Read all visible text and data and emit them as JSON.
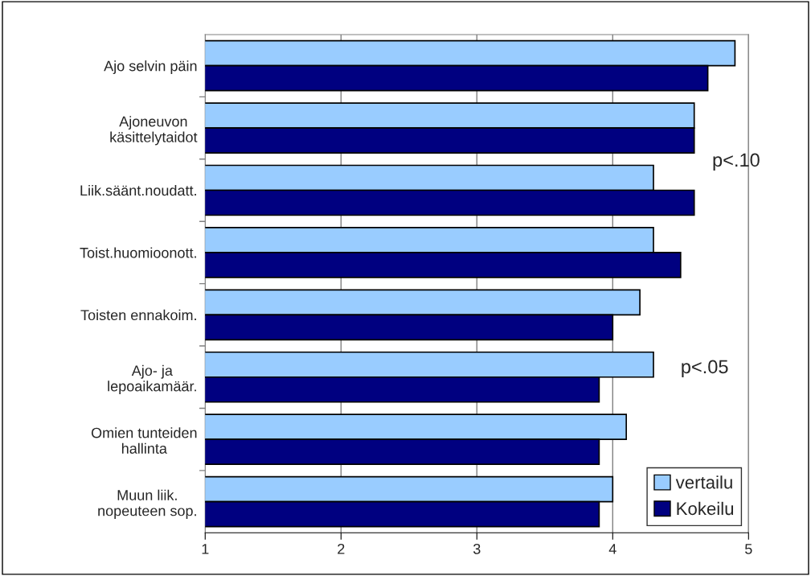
{
  "chart_data": {
    "type": "bar",
    "orientation": "horizontal",
    "categories": [
      "Ajo selvin päin",
      "Ajoneuvon\nkäsittelytaidot",
      "Liik.säänt.noudatt.",
      "Toist.huomioonott.",
      "Toisten ennakoim.",
      "Ajo- ja\nlepoaikamäär.",
      "Omien tunteiden\nhallinta",
      "Muun liik.\nnopeuteen sop."
    ],
    "series": [
      {
        "name": "vertailu",
        "color": "#99ccff",
        "values": [
          4.9,
          4.6,
          4.3,
          4.3,
          4.2,
          4.3,
          4.1,
          4.0
        ]
      },
      {
        "name": "Kokeilu",
        "color": "#000080",
        "values": [
          4.7,
          4.6,
          4.6,
          4.5,
          4.0,
          3.9,
          3.9,
          3.9
        ]
      }
    ],
    "xlim": [
      1,
      5
    ],
    "xticks": [
      1,
      2,
      3,
      4,
      5
    ],
    "grid": "x",
    "legend": "bottom right",
    "annotations": [
      "p<.10",
      "p<.05"
    ]
  }
}
